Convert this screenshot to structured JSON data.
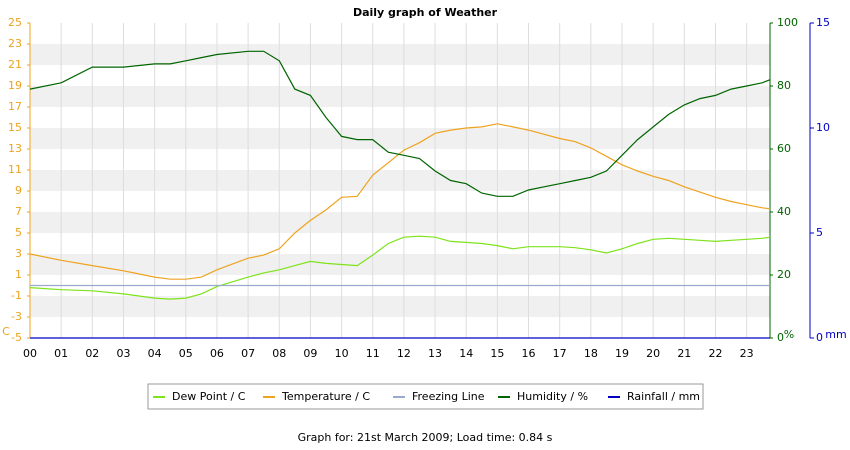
{
  "chart_data": {
    "type": "line",
    "title": "Daily graph of Weather",
    "footer": "Graph for: 21st March 2009; Load time: 0.84 s",
    "y_label": "C",
    "y2_label": "%",
    "y3_label": "mm",
    "x": [
      0,
      1,
      2,
      3,
      4,
      4.5,
      5,
      5.5,
      6,
      7,
      7.5,
      8,
      8.5,
      9,
      9.5,
      10,
      10.5,
      11,
      11.5,
      12,
      12.5,
      13,
      13.5,
      14,
      14.5,
      15,
      15.5,
      16,
      16.5,
      17,
      17.5,
      18,
      18.5,
      19,
      19.5,
      20,
      20.5,
      21,
      21.5,
      22,
      22.5,
      23,
      23.5,
      23.75
    ],
    "xlim": [
      0,
      23.75
    ],
    "xticks": [
      {
        "value": 0,
        "label": "00"
      },
      {
        "value": 1,
        "label": "01"
      },
      {
        "value": 2,
        "label": "02"
      },
      {
        "value": 3,
        "label": "03"
      },
      {
        "value": 4,
        "label": "04"
      },
      {
        "value": 5,
        "label": "05"
      },
      {
        "value": 6,
        "label": "06"
      },
      {
        "value": 7,
        "label": "07"
      },
      {
        "value": 8,
        "label": "08"
      },
      {
        "value": 9,
        "label": "09"
      },
      10,
      11,
      12,
      13,
      14,
      15,
      16,
      17,
      18,
      19,
      20,
      21,
      22,
      23
    ],
    "ylim": [
      -5,
      25
    ],
    "yticks": [
      -5,
      -3,
      -1,
      1,
      3,
      5,
      7,
      9,
      11,
      13,
      15,
      17,
      19,
      21,
      23,
      25
    ],
    "y2lim": [
      0,
      100
    ],
    "y2ticks": [
      0,
      20,
      40,
      60,
      80,
      100
    ],
    "y3lim": [
      0,
      15
    ],
    "y3ticks": [
      0,
      5,
      10,
      15
    ],
    "grid": true,
    "legend": "bottom",
    "series": [
      {
        "name": "Dew Point / C",
        "color": "#7ee31a",
        "values": [
          -0.2,
          -0.4,
          -0.5,
          -0.8,
          -1.2,
          -1.3,
          -1.2,
          -0.8,
          -0.1,
          0.8,
          1.2,
          1.5,
          1.9,
          2.3,
          2.1,
          2.0,
          1.9,
          2.9,
          4.0,
          4.6,
          4.7,
          4.6,
          4.2,
          4.1,
          4.0,
          3.8,
          3.5,
          3.7,
          3.7,
          3.7,
          3.6,
          3.4,
          3.1,
          3.5,
          4.0,
          4.4,
          4.5,
          4.4,
          4.3,
          4.2,
          4.3,
          4.4,
          4.5,
          4.6
        ]
      },
      {
        "name": "Temperature / C",
        "color": "#eea320",
        "values": [
          3.0,
          2.4,
          1.9,
          1.4,
          0.8,
          0.6,
          0.6,
          0.8,
          1.5,
          2.6,
          2.9,
          3.5,
          5.0,
          6.2,
          7.2,
          8.4,
          8.5,
          10.5,
          11.7,
          12.9,
          13.6,
          14.5,
          14.8,
          15.0,
          15.1,
          15.4,
          15.1,
          14.8,
          14.4,
          14.0,
          13.7,
          13.1,
          12.3,
          11.5,
          10.9,
          10.4,
          10.0,
          9.4,
          8.9,
          8.4,
          8.0,
          7.7,
          7.4,
          7.3
        ]
      },
      {
        "name": "Freezing Line",
        "color": "#99aacc",
        "values": [
          0,
          0,
          0,
          0,
          0,
          0,
          0,
          0,
          0,
          0,
          0,
          0,
          0,
          0,
          0,
          0,
          0,
          0,
          0,
          0,
          0,
          0,
          0,
          0,
          0,
          0,
          0,
          0,
          0,
          0,
          0,
          0,
          0,
          0,
          0,
          0,
          0,
          0,
          0,
          0,
          0,
          0,
          0,
          0
        ]
      },
      {
        "name": "Humidity / %",
        "color": "#006400",
        "axis": "y2",
        "values": [
          79,
          81,
          86,
          86,
          87,
          87,
          88,
          89,
          90,
          91,
          91,
          88,
          79,
          77,
          70,
          64,
          63,
          63,
          59,
          58,
          57,
          53,
          50,
          49,
          46,
          45,
          45,
          47,
          48,
          49,
          50,
          51,
          53,
          58,
          63,
          67,
          71,
          74,
          76,
          77,
          79,
          80,
          81,
          82
        ]
      },
      {
        "name": "Rainfall / mm",
        "color": "#0000c0",
        "axis": "y3",
        "values": [
          0,
          0,
          0,
          0,
          0,
          0,
          0,
          0,
          0,
          0,
          0,
          0,
          0,
          0,
          0,
          0,
          0,
          0,
          0,
          0,
          0,
          0,
          0,
          0,
          0,
          0,
          0,
          0,
          0,
          0,
          0,
          0,
          0,
          0,
          0,
          0,
          0,
          0,
          0,
          0,
          0,
          0,
          0,
          0
        ]
      }
    ]
  }
}
